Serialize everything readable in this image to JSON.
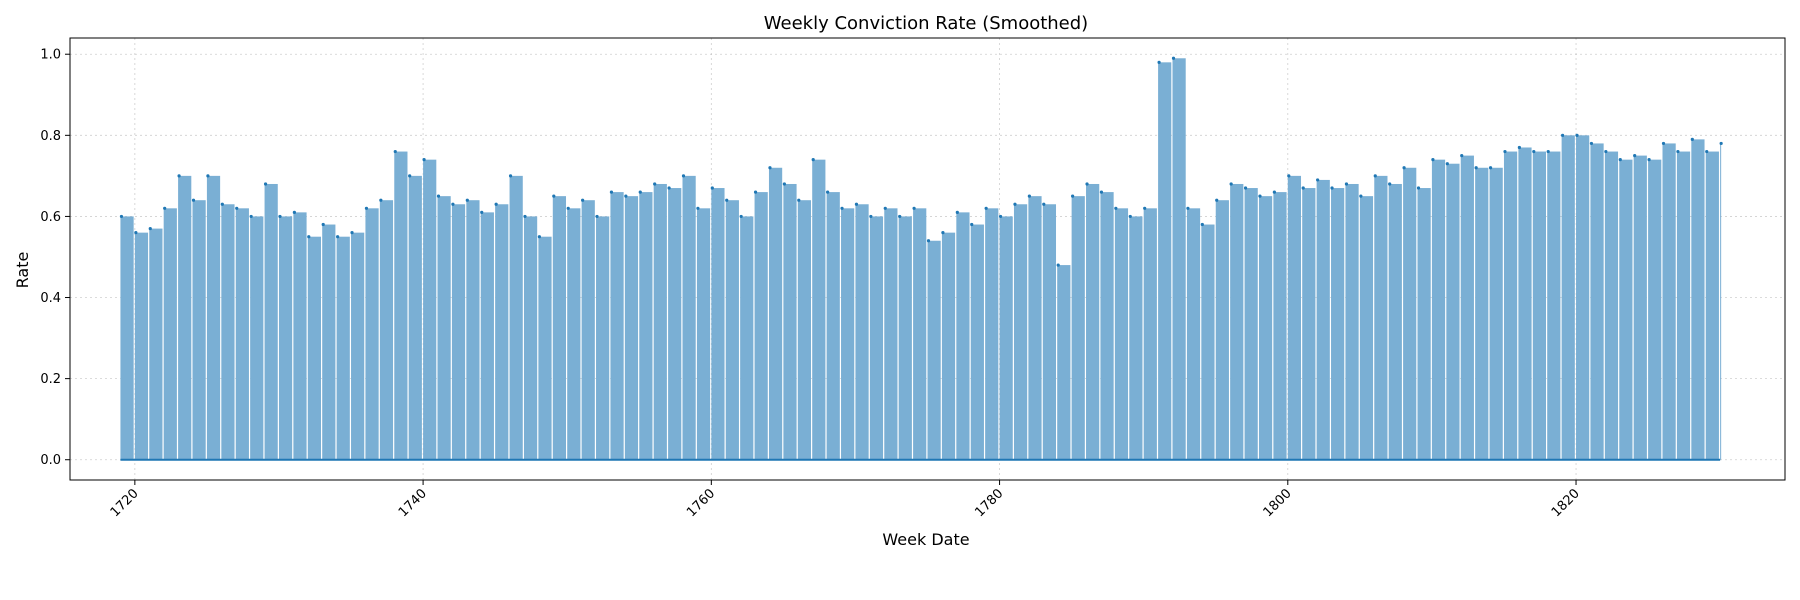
{
  "chart_data": {
    "type": "bar",
    "title": "Weekly Conviction Rate (Smoothed)",
    "xlabel": "Week Date",
    "ylabel": "Rate",
    "xlim": [
      1715.5,
      1834.5
    ],
    "ylim": [
      -0.05,
      1.04
    ],
    "x_ticks": [
      1720,
      1740,
      1760,
      1780,
      1800,
      1820
    ],
    "x_tick_labels": [
      "1720",
      "1740",
      "1760",
      "1780",
      "1800",
      "1820"
    ],
    "y_ticks": [
      0.0,
      0.2,
      0.4,
      0.6,
      0.8,
      1.0
    ],
    "y_tick_labels": [
      "0.0",
      "0.2",
      "0.4",
      "0.6",
      "0.8",
      "1.0"
    ],
    "x_start": 1719.0,
    "x_end": 1830.0,
    "grid": true,
    "series": [
      {
        "color": "#1f77b4",
        "fill": "#7aafd4",
        "x": [
          1719,
          1720,
          1721,
          1722,
          1723,
          1724,
          1725,
          1726,
          1727,
          1728,
          1729,
          1730,
          1731,
          1732,
          1733,
          1734,
          1735,
          1736,
          1737,
          1738,
          1739,
          1740,
          1741,
          1742,
          1743,
          1744,
          1745,
          1746,
          1747,
          1748,
          1749,
          1750,
          1751,
          1752,
          1753,
          1754,
          1755,
          1756,
          1757,
          1758,
          1759,
          1760,
          1761,
          1762,
          1763,
          1764,
          1765,
          1766,
          1767,
          1768,
          1769,
          1770,
          1771,
          1772,
          1773,
          1774,
          1775,
          1776,
          1777,
          1778,
          1779,
          1780,
          1781,
          1782,
          1783,
          1784,
          1785,
          1786,
          1787,
          1788,
          1789,
          1790,
          1791,
          1792,
          1793,
          1794,
          1795,
          1796,
          1797,
          1798,
          1799,
          1800,
          1801,
          1802,
          1803,
          1804,
          1805,
          1806,
          1807,
          1808,
          1809,
          1810,
          1811,
          1812,
          1813,
          1814,
          1815,
          1816,
          1817,
          1818,
          1819,
          1820,
          1821,
          1822,
          1823,
          1824,
          1825,
          1826,
          1827,
          1828,
          1829,
          1830
        ],
        "values": [
          0.6,
          0.56,
          0.57,
          0.62,
          0.7,
          0.64,
          0.7,
          0.63,
          0.62,
          0.6,
          0.68,
          0.6,
          0.61,
          0.55,
          0.58,
          0.55,
          0.56,
          0.62,
          0.64,
          0.76,
          0.7,
          0.74,
          0.65,
          0.63,
          0.64,
          0.61,
          0.63,
          0.7,
          0.6,
          0.55,
          0.65,
          0.62,
          0.64,
          0.6,
          0.66,
          0.65,
          0.66,
          0.68,
          0.67,
          0.7,
          0.62,
          0.67,
          0.64,
          0.6,
          0.66,
          0.72,
          0.68,
          0.64,
          0.74,
          0.66,
          0.62,
          0.63,
          0.6,
          0.62,
          0.6,
          0.62,
          0.54,
          0.56,
          0.61,
          0.58,
          0.62,
          0.6,
          0.63,
          0.65,
          0.63,
          0.48,
          0.65,
          0.68,
          0.66,
          0.62,
          0.6,
          0.62,
          0.98,
          0.99,
          0.62,
          0.58,
          0.64,
          0.68,
          0.67,
          0.65,
          0.66,
          0.7,
          0.67,
          0.69,
          0.67,
          0.68,
          0.65,
          0.7,
          0.68,
          0.72,
          0.67,
          0.74,
          0.73,
          0.75,
          0.72,
          0.72,
          0.76,
          0.77,
          0.76,
          0.76,
          0.8,
          0.8,
          0.78,
          0.76,
          0.74,
          0.75,
          0.74,
          0.78,
          0.76,
          0.79,
          0.76,
          0.78
        ]
      }
    ]
  }
}
